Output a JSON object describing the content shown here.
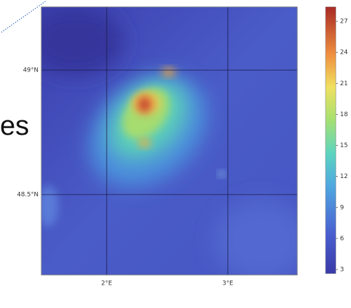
{
  "map": {
    "lat_labels": [
      "49°N",
      "48.5°N"
    ],
    "lon_labels": [
      "2°E",
      "3°E"
    ],
    "colorbar": {
      "lim": [
        2.6,
        28.4
      ],
      "ticks": [
        3,
        6,
        9,
        12,
        15,
        18,
        21,
        24,
        27
      ]
    }
  },
  "fragment_text": "es"
}
